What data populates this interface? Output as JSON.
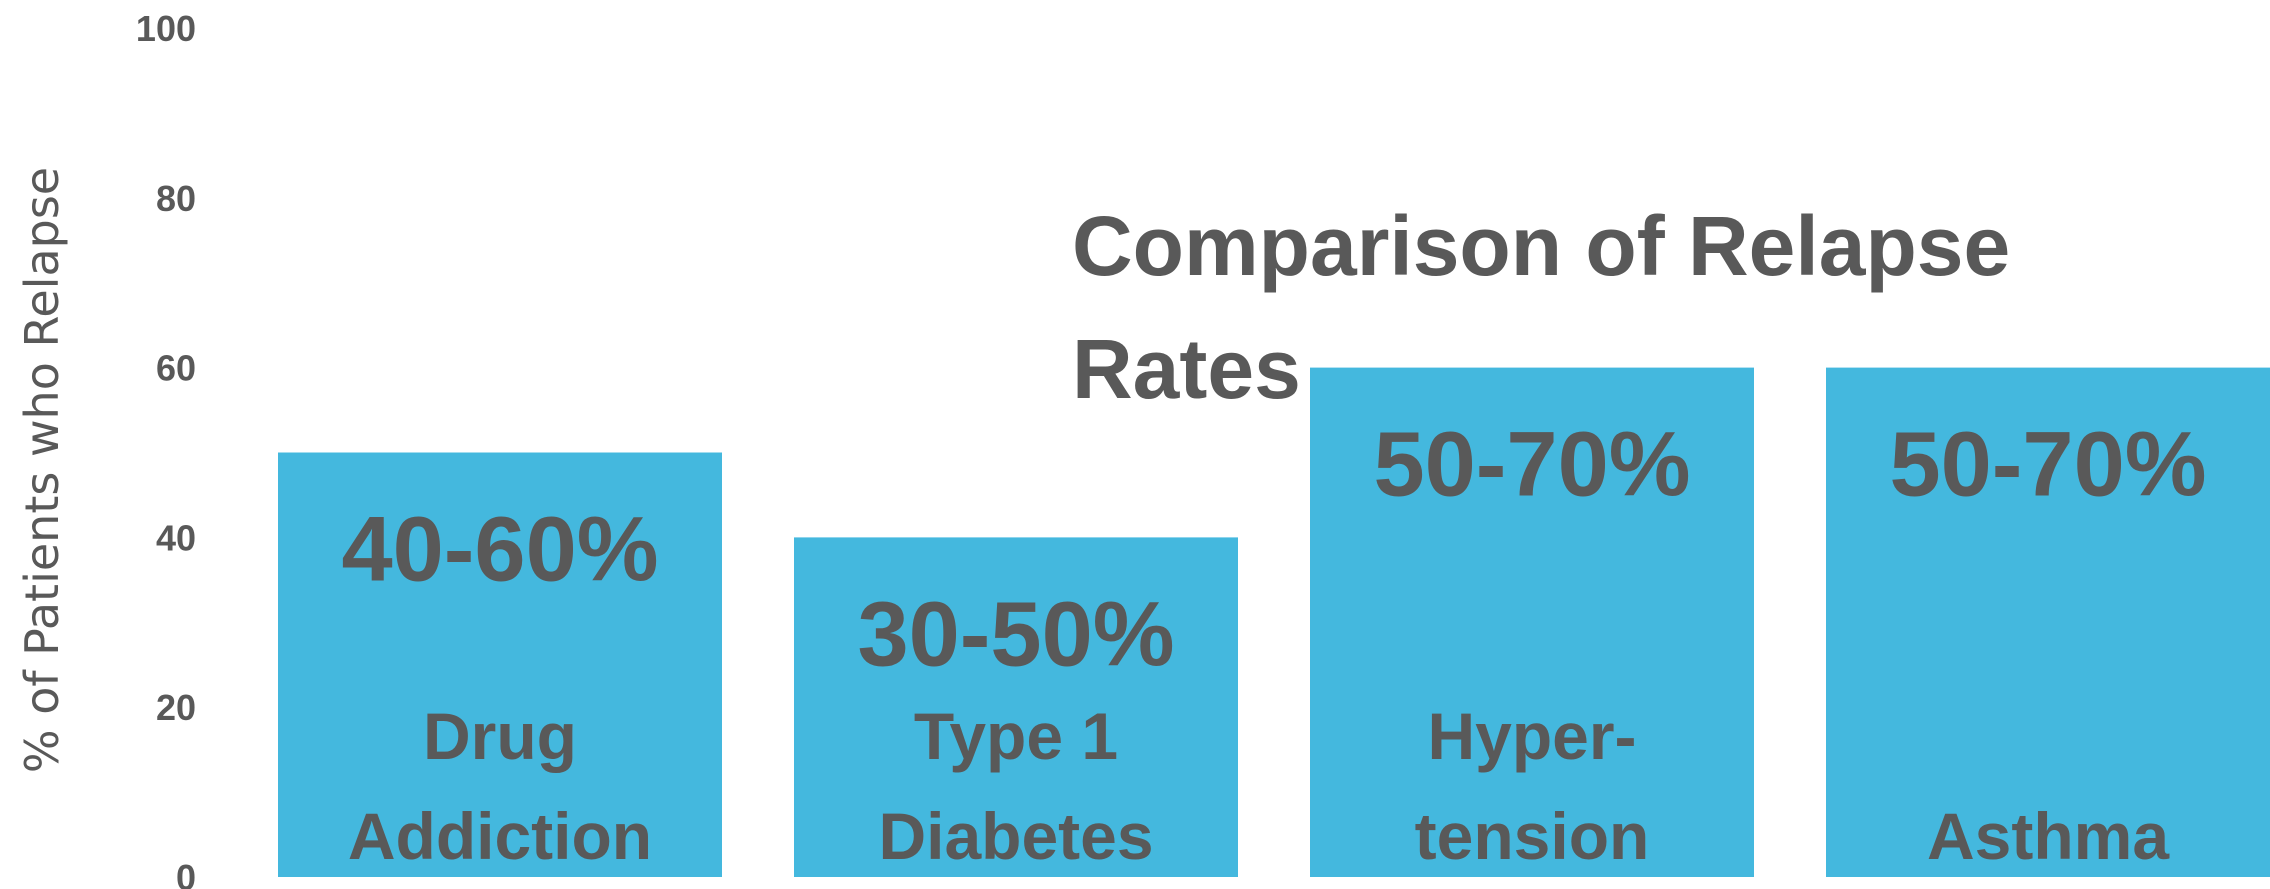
{
  "chart_data": {
    "type": "bar",
    "title_lines": [
      "Comparison of Relapse",
      "Rates"
    ],
    "ylabel": "% of Patients who Relapse",
    "xlabel": "",
    "ylim": [
      0,
      100
    ],
    "yticks": [
      0,
      20,
      40,
      60,
      80,
      100
    ],
    "grid": false,
    "bar_color": "#44B8DE",
    "text_color": "#595959",
    "bars": [
      {
        "category_lines": [
          "Drug",
          "Addiction"
        ],
        "value": 50,
        "value_label": "40-60%"
      },
      {
        "category_lines": [
          "Type 1",
          "Diabetes"
        ],
        "value": 40,
        "value_label": "30-50%"
      },
      {
        "category_lines": [
          "Hyper-",
          "tension"
        ],
        "value": 60,
        "value_label": "50-70%"
      },
      {
        "category_lines": [
          "Asthma"
        ],
        "value": 60,
        "value_label": "50-70%"
      }
    ]
  }
}
